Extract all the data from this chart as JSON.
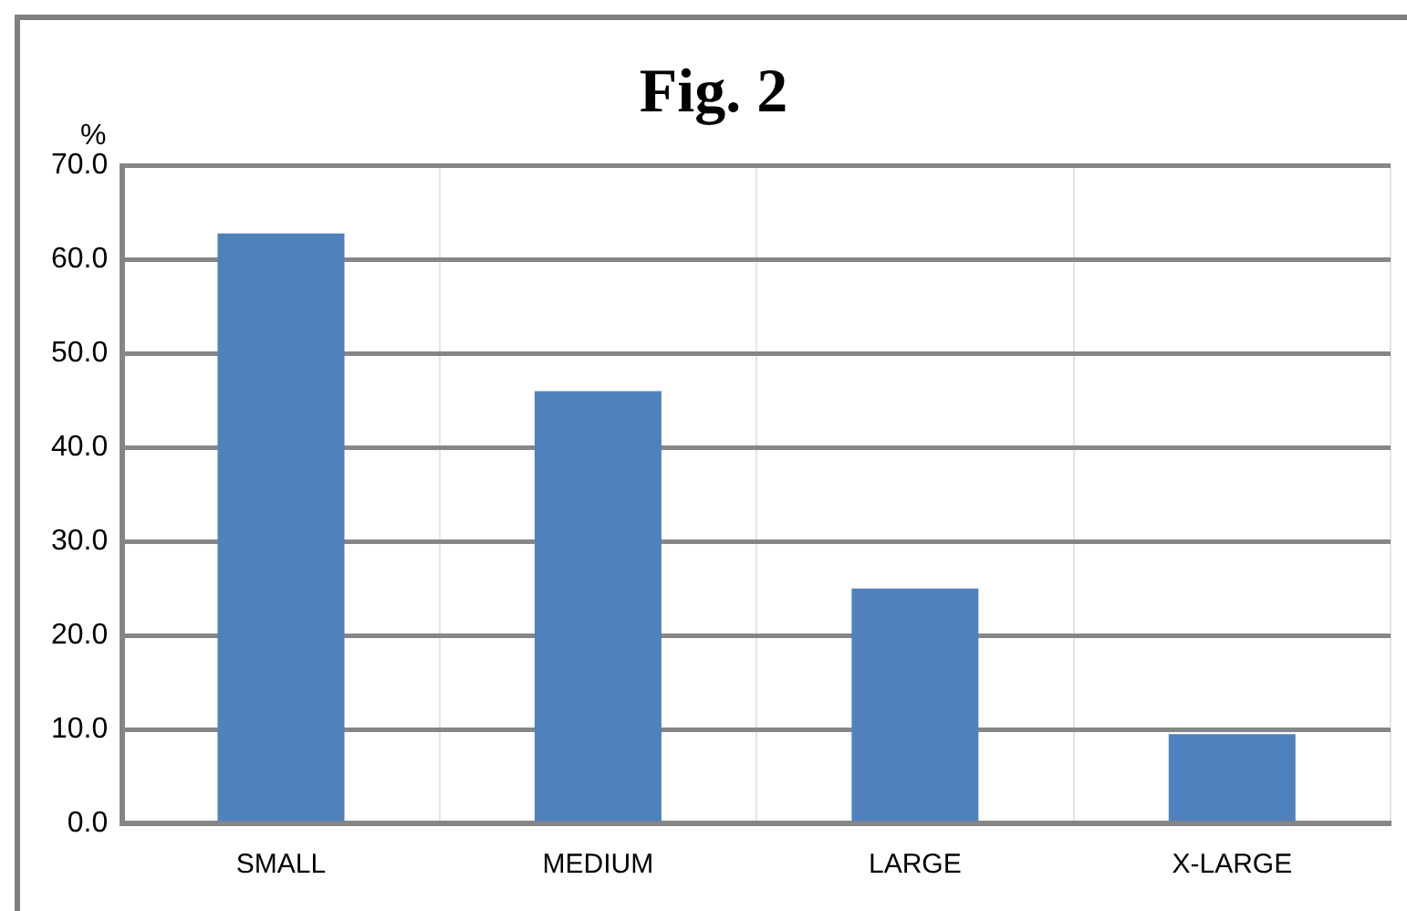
{
  "chart_data": {
    "type": "bar",
    "title": "Fig. 2",
    "ylabel": "%",
    "categories": [
      "SMALL",
      "MEDIUM",
      "LARGE",
      "X-LARGE"
    ],
    "values": [
      62.8,
      46.0,
      25.0,
      9.5
    ],
    "color": "#4f81bd",
    "ylim": [
      0,
      70
    ],
    "yticks": [
      {
        "value": 0,
        "label": "0.0"
      },
      {
        "value": 10,
        "label": "10.0"
      },
      {
        "value": 20,
        "label": "20.0"
      },
      {
        "value": 30,
        "label": "30.0"
      },
      {
        "value": 40,
        "label": "40.0"
      },
      {
        "value": 50,
        "label": "50.0"
      },
      {
        "value": 60,
        "label": "60.0"
      },
      {
        "value": 70,
        "label": "70.0"
      }
    ],
    "grid": true,
    "legend": false
  }
}
